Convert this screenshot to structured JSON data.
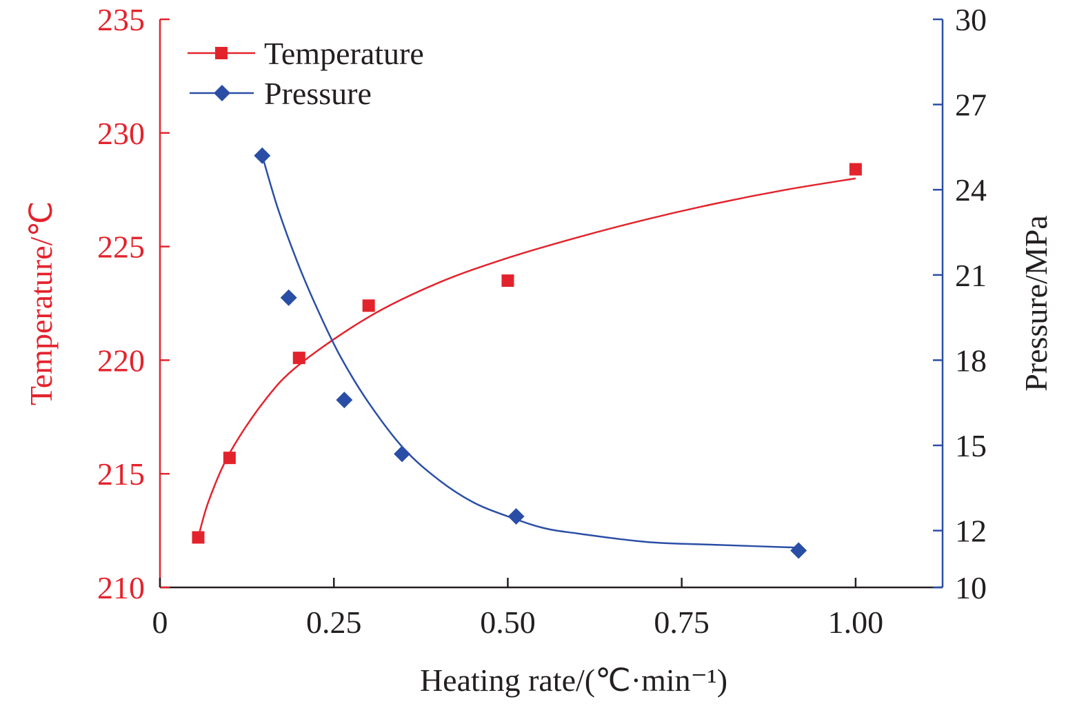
{
  "chart_data": {
    "type": "line",
    "xlabel": "Heating rate/(℃·min⁻¹)",
    "ylabel_left": "Temperature/℃",
    "ylabel_right": "Pressure/MPa",
    "xlim": [
      0,
      1.125
    ],
    "ylim_left": [
      210,
      235
    ],
    "ylim_right": [
      10,
      30
    ],
    "x_ticks": [
      0,
      0.25,
      0.5,
      0.75,
      1.0
    ],
    "x_tick_labels": [
      "0",
      "0.25",
      "0.50",
      "0.75",
      "1.00"
    ],
    "y_left_ticks": [
      210,
      215,
      220,
      225,
      230,
      235
    ],
    "y_left_tick_labels": [
      "210",
      "215",
      "220",
      "225",
      "230",
      "235"
    ],
    "y_right_ticks": [
      10,
      12,
      15,
      18,
      21,
      24,
      27,
      30
    ],
    "y_right_tick_labels": [
      "10",
      "12",
      "15",
      "18",
      "21",
      "24",
      "27",
      "30"
    ],
    "grid": false,
    "legend_position": "top-left",
    "colors": {
      "temperature": "#e3232c",
      "pressure": "#2a4ea6",
      "axis": "#231f20"
    },
    "series": [
      {
        "name": "Temperature",
        "axis": "left",
        "marker": "square",
        "x": [
          0.055,
          0.1,
          0.2,
          0.3,
          0.5,
          1.0
        ],
        "y": [
          212.2,
          215.7,
          220.1,
          222.4,
          223.5,
          228.4
        ],
        "fit": {
          "x": [
            0.055,
            0.07,
            0.1,
            0.15,
            0.2,
            0.3,
            0.4,
            0.5,
            0.6,
            0.7,
            0.8,
            0.9,
            1.0
          ],
          "y": [
            212.2,
            213.8,
            215.9,
            218.2,
            219.8,
            221.9,
            223.4,
            224.5,
            225.4,
            226.2,
            226.9,
            227.5,
            228.0
          ]
        }
      },
      {
        "name": "Pressure",
        "axis": "right",
        "marker": "diamond",
        "x": [
          0.147,
          0.185,
          0.265,
          0.348,
          0.512,
          0.918
        ],
        "y": [
          25.2,
          20.2,
          16.6,
          14.7,
          12.5,
          11.3
        ],
        "fit": {
          "x": [
            0.147,
            0.17,
            0.2,
            0.23,
            0.26,
            0.3,
            0.35,
            0.4,
            0.45,
            0.5,
            0.55,
            0.6,
            0.7,
            0.8,
            0.918
          ],
          "y": [
            25.2,
            23.3,
            21.3,
            19.6,
            18.1,
            16.5,
            14.9,
            13.8,
            13.0,
            12.5,
            12.1,
            11.9,
            11.6,
            11.5,
            11.4
          ]
        }
      }
    ]
  }
}
